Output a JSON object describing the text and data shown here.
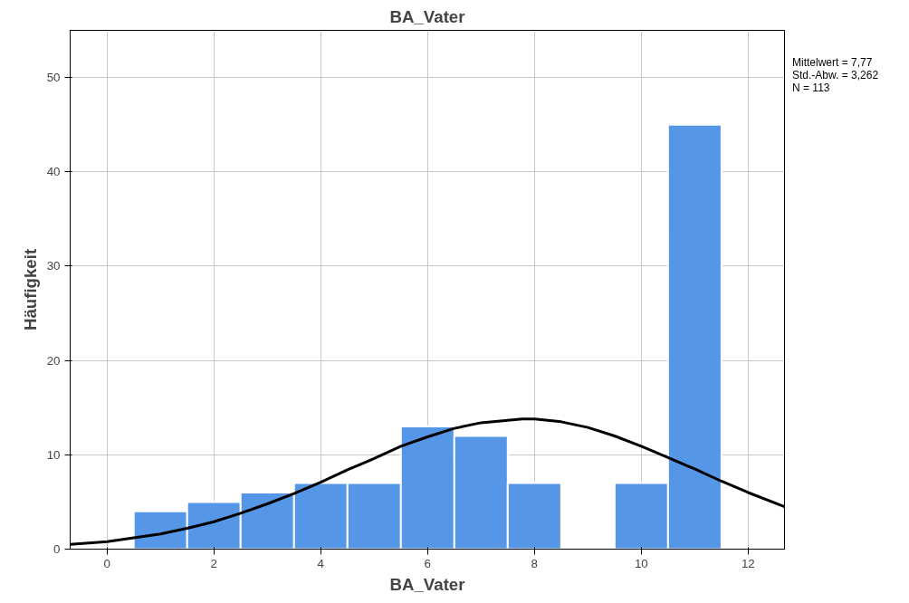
{
  "chart_data": {
    "type": "histogram",
    "title": "BA_Vater",
    "xlabel": "BA_Vater",
    "ylabel": "Häufigkeit",
    "bins": [
      0.5,
      1.5,
      2.5,
      3.5,
      4.5,
      5.5,
      6.5,
      7.5,
      8.5,
      9.5,
      10.5,
      11.5
    ],
    "values": [
      4,
      5,
      6,
      7,
      7,
      13,
      12,
      7,
      0,
      7,
      45
    ],
    "color": "#5596e6",
    "series": [
      {
        "type": "line",
        "color": "#000000",
        "x": [
          -0.69,
          0,
          0.5,
          1,
          1.5,
          2,
          2.5,
          3,
          3.5,
          4,
          4.5,
          5,
          5.5,
          6,
          6.5,
          7,
          7.77,
          8,
          8.5,
          9,
          9.5,
          10,
          10.5,
          11,
          11.5,
          12,
          12.68
        ],
        "values": [
          0.5,
          0.8,
          1.2,
          1.6,
          2.2,
          2.9,
          3.8,
          4.8,
          5.9,
          7.1,
          8.4,
          9.6,
          10.9,
          11.9,
          12.8,
          13.4,
          13.8,
          13.8,
          13.5,
          12.9,
          12,
          10.9,
          9.7,
          8.5,
          7.2,
          6,
          4.5
        ]
      }
    ],
    "xlim": [
      -0.69,
      12.68
    ],
    "ylim": [
      0,
      55
    ],
    "xticks": [
      0,
      2,
      4,
      6,
      8,
      10,
      12
    ],
    "yticks": [
      0,
      10,
      20,
      30,
      40,
      50
    ],
    "grid": true,
    "annotations": [
      "Mittelwert = 7,77",
      "Std.-Abw. = 3,262",
      "N = 113"
    ]
  }
}
